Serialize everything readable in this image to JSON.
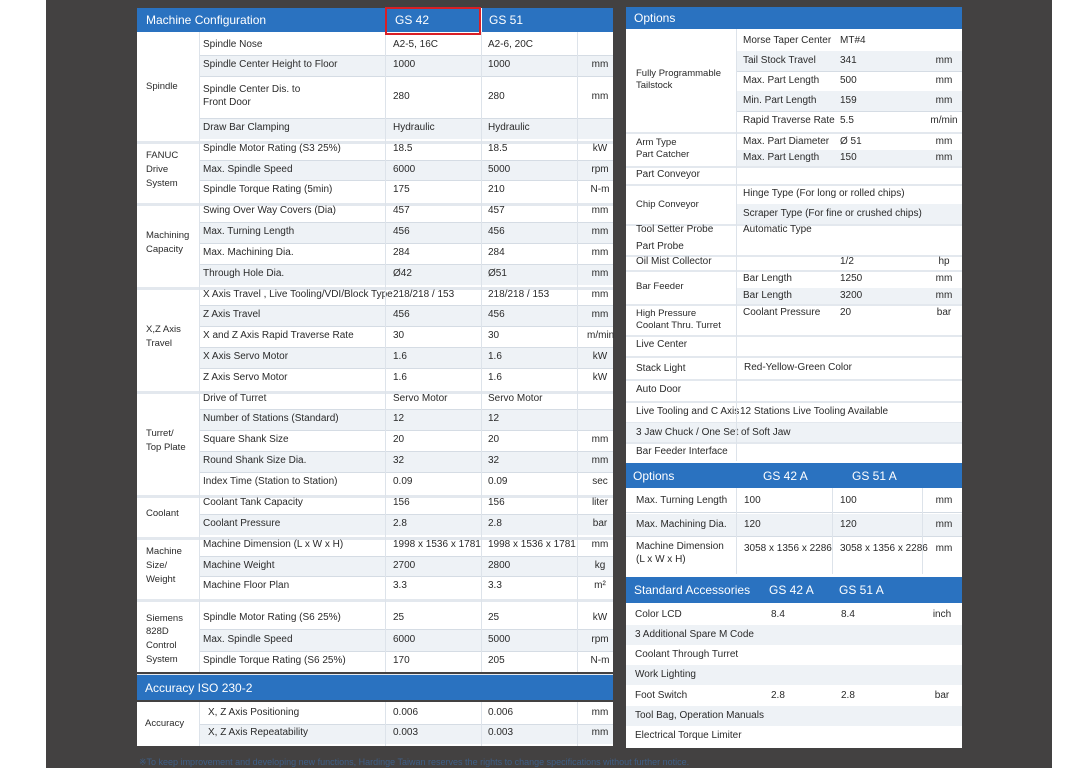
{
  "left": {
    "title": "Machine Configuration",
    "col1": "GS 42",
    "col2": "GS 51",
    "groups": [
      {
        "label": "Spindle",
        "rows": [
          {
            "name": "Spindle Nose",
            "v1": "A2-5, 16C",
            "v2": "A2-6, 20C",
            "unit": ""
          },
          {
            "name": "Spindle Center Height to Floor",
            "v1": "1000",
            "v2": "1000",
            "unit": "mm"
          },
          {
            "name": "Spindle Center Dis. to\nFront Door",
            "v1": "280",
            "v2": "280",
            "unit": "mm"
          },
          {
            "name": "Draw Bar Clamping",
            "v1": "Hydraulic",
            "v2": "Hydraulic",
            "unit": ""
          }
        ]
      },
      {
        "label": "FANUC\nDrive\nSystem",
        "rows": [
          {
            "name": "Spindle Motor Rating (S3 25%)",
            "v1": "18.5",
            "v2": "18.5",
            "unit": "kW"
          },
          {
            "name": "Max. Spindle Speed",
            "v1": "6000",
            "v2": "5000",
            "unit": "rpm"
          },
          {
            "name": "Spindle Torque Rating (5min)",
            "v1": "175",
            "v2": "210",
            "unit": "N-m"
          }
        ]
      },
      {
        "label": "Machining\nCapacity",
        "rows": [
          {
            "name": "Swing Over Way Covers (Dia)",
            "v1": "457",
            "v2": "457",
            "unit": "mm"
          },
          {
            "name": "Max. Turning Length",
            "v1": "456",
            "v2": "456",
            "unit": "mm"
          },
          {
            "name": "Max. Machining Dia.",
            "v1": "284",
            "v2": "284",
            "unit": "mm"
          },
          {
            "name": "Through Hole Dia.",
            "v1": "Ø42",
            "v2": "Ø51",
            "unit": "mm"
          }
        ]
      },
      {
        "label": "X,Z Axis\nTravel",
        "rows": [
          {
            "name": "X Axis Travel , Live Tooling/VDI/Block Type",
            "v1": "218/218 / 153",
            "v2": "218/218 / 153",
            "unit": "mm"
          },
          {
            "name": "Z Axis Travel",
            "v1": "456",
            "v2": "456",
            "unit": "mm"
          },
          {
            "name": "X and Z Axis Rapid Traverse Rate",
            "v1": "30",
            "v2": "30",
            "unit": "m/min"
          },
          {
            "name": "X Axis Servo Motor",
            "v1": "1.6",
            "v2": "1.6",
            "unit": "kW"
          },
          {
            "name": "Z Axis Servo Motor",
            "v1": "1.6",
            "v2": "1.6",
            "unit": "kW"
          }
        ]
      },
      {
        "label": "Turret/\nTop Plate",
        "rows": [
          {
            "name": "Drive of Turret",
            "v1": "Servo Motor",
            "v2": "Servo Motor",
            "unit": ""
          },
          {
            "name": "Number of Stations (Standard)",
            "v1": "12",
            "v2": "12",
            "unit": ""
          },
          {
            "name": "Square Shank Size",
            "v1": "20",
            "v2": "20",
            "unit": "mm"
          },
          {
            "name": "Round Shank Size Dia.",
            "v1": "32",
            "v2": "32",
            "unit": "mm"
          },
          {
            "name": "Index Time (Station to Station)",
            "v1": "0.09",
            "v2": "0.09",
            "unit": "sec"
          }
        ]
      },
      {
        "label": "Coolant",
        "rows": [
          {
            "name": "Coolant Tank Capacity",
            "v1": "156",
            "v2": "156",
            "unit": "liter"
          },
          {
            "name": "Coolant Pressure",
            "v1": "2.8",
            "v2": "2.8",
            "unit": "bar"
          }
        ]
      },
      {
        "label": "Machine\nSize/\nWeight",
        "rows": [
          {
            "name": "Machine Dimension (L x W x H)",
            "v1": "1998 x 1536 x 1781",
            "v2": "1998 x 1536 x 1781",
            "unit": "mm"
          },
          {
            "name": "Machine Weight",
            "v1": "2700",
            "v2": "2800",
            "unit": "kg"
          },
          {
            "name": "Machine Floor Plan",
            "v1": "3.3",
            "v2": "3.3",
            "unit": "m²"
          }
        ]
      },
      {
        "label": "Siemens\n828D\nControl\nSystem",
        "rows": [
          {
            "name": "Spindle Motor Rating (S6 25%)",
            "v1": "25",
            "v2": "25",
            "unit": "kW"
          },
          {
            "name": "Max. Spindle Speed",
            "v1": "6000",
            "v2": "5000",
            "unit": "rpm"
          },
          {
            "name": "Spindle Torque Rating (S6 25%)",
            "v1": "170",
            "v2": "205",
            "unit": "N-m"
          }
        ]
      }
    ],
    "accuracy_title": "Accuracy ISO 230-2",
    "accuracy": {
      "label": "Accuracy",
      "rows": [
        {
          "name": "X, Z Axis Positioning",
          "v1": "0.006",
          "v2": "0.006",
          "unit": "mm"
        },
        {
          "name": "X, Z Axis Repeatability",
          "v1": "0.003",
          "v2": "0.003",
          "unit": "mm"
        }
      ]
    }
  },
  "right": {
    "options_title": "Options",
    "tailstock": {
      "label": "Fully Programmable\nTailstock",
      "rows": [
        {
          "name": "Morse Taper Center",
          "v": "MT#4",
          "unit": ""
        },
        {
          "name": "Tail Stock Travel",
          "v": "341",
          "unit": "mm"
        },
        {
          "name": "Max. Part Length",
          "v": "500",
          "unit": "mm"
        },
        {
          "name": "Min. Part Length",
          "v": "159",
          "unit": "mm"
        },
        {
          "name": "Rapid Traverse Rate",
          "v": "5.5",
          "unit": "m/min"
        }
      ]
    },
    "catcher": {
      "label": "Arm Type\nPart Catcher",
      "rows": [
        {
          "name": "Max. Part Diameter",
          "v": "Ø 51",
          "unit": "mm"
        },
        {
          "name": "Max. Part Length",
          "v": "150",
          "unit": "mm"
        }
      ]
    },
    "part_conveyor": "Part Conveyor",
    "chip": {
      "label": "Chip Conveyor",
      "rows": [
        "Hinge Type (For long or rolled chips)",
        "Scraper Type (For fine or crushed chips)"
      ]
    },
    "tool_setter": {
      "label": "Tool Setter Probe",
      "value": "Automatic Type"
    },
    "part_probe": "Part Probe",
    "oil_mist": {
      "label": "Oil Mist Collector",
      "v": "1/2",
      "unit": "hp"
    },
    "bar_feeder": {
      "label": "Bar Feeder",
      "rows": [
        {
          "name": "Bar Length",
          "v": "1250",
          "unit": "mm"
        },
        {
          "name": "Bar Length",
          "v": "3200",
          "unit": "mm"
        }
      ]
    },
    "hp_coolant": {
      "label": "High Pressure\nCoolant Thru. Turret",
      "name": "Coolant Pressure",
      "v": "20",
      "unit": "bar"
    },
    "live_center": "Live Center",
    "stack_light": {
      "label": "Stack Light",
      "value": "Red-Yellow-Green Color"
    },
    "auto_door": "Auto Door",
    "live_tooling": {
      "label": "Live Tooling and C Axis",
      "value": "12 Stations Live Tooling Available"
    },
    "jaw_chuck": "3 Jaw Chuck / One Set of Soft Jaw",
    "bar_feeder_interface": "Bar Feeder Interface",
    "options2": {
      "title": "Options",
      "col1": "GS 42 A",
      "col2": "GS 51 A",
      "rows": [
        {
          "name": "Max. Turning Length",
          "v1": "100",
          "v2": "100",
          "unit": "mm"
        },
        {
          "name": "Max. Machining Dia.",
          "v1": "120",
          "v2": "120",
          "unit": "mm"
        },
        {
          "name": "Machine Dimension\n(L x W x H)",
          "v1": "3058 x 1356 x 2286",
          "v2": "3058 x 1356 x 2286",
          "unit": "mm"
        }
      ]
    },
    "accessories": {
      "title": "Standard Accessories",
      "col1": "GS 42 A",
      "col2": "GS 51 A",
      "rows": [
        {
          "name": "Color LCD",
          "v1": "8.4",
          "v2": "8.4",
          "unit": "inch"
        },
        {
          "name": "3 Additional Spare M Code",
          "v1": "",
          "v2": "",
          "unit": ""
        },
        {
          "name": "Coolant Through Turret",
          "v1": "",
          "v2": "",
          "unit": ""
        },
        {
          "name": "Work Lighting",
          "v1": "",
          "v2": "",
          "unit": ""
        },
        {
          "name": "Foot Switch",
          "v1": "2.8",
          "v2": "2.8",
          "unit": "bar"
        },
        {
          "name": "Tool Bag, Operation Manuals",
          "v1": "",
          "v2": "",
          "unit": ""
        },
        {
          "name": "Electrical Torque Limiter",
          "v1": "",
          "v2": "",
          "unit": ""
        }
      ]
    }
  },
  "footnote": "※To keep improvement and developing new functions, Hardinge Taiwan reserves the rights to change specifications without further notice.",
  "colors": {
    "header": "#2a72c0",
    "background": "#434141",
    "highlight": "#d91f26"
  }
}
